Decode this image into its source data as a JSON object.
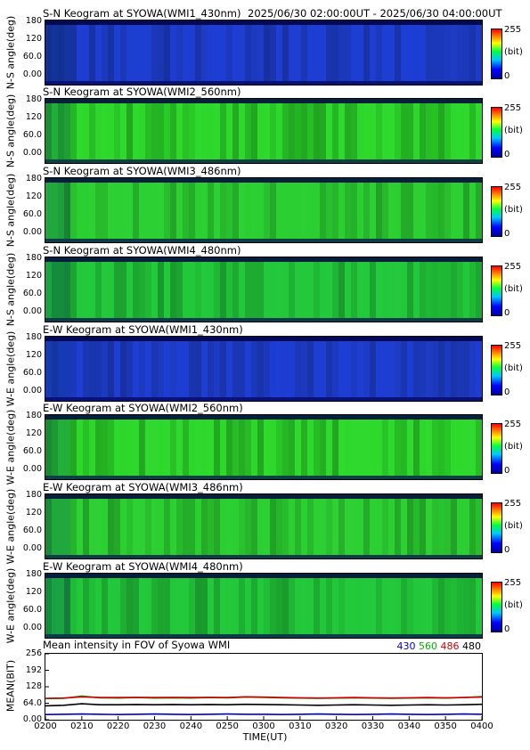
{
  "header": {
    "time_range": "2025/06/30 02:00:00UT - 2025/06/30 04:00:00UT"
  },
  "colorbar": {
    "max": "255",
    "unit": "(bit)",
    "min": "0",
    "colors": [
      "#0000a0",
      "#0000ff",
      "#00c8ff",
      "#00ff40",
      "#ffff00",
      "#ff8000",
      "#ff0000"
    ]
  },
  "keograms": [
    {
      "title": "S-N Keogram at SYOWA(WMI1_430nm)",
      "ylabel": "N-S angle(deg)",
      "yticks": [
        "180",
        "120",
        "60.0",
        "0.00"
      ],
      "base": "#1f3fd0",
      "band": "#1638e0"
    },
    {
      "title": "S-N Keogram at SYOWA(WMI2_560nm)",
      "ylabel": "N-S angle(deg)",
      "yticks": [
        "180",
        "120",
        "60.0",
        "0.00"
      ],
      "base": "#2cd62a",
      "band": "#3ee83a"
    },
    {
      "title": "S-N Keogram at SYOWA(WMI3_486nm)",
      "ylabel": "N-S angle(deg)",
      "yticks": [
        "180",
        "120",
        "60.0",
        "0.00"
      ],
      "base": "#2ccf32",
      "band": "#34d838"
    },
    {
      "title": "S-N Keogram at SYOWA(WMI4_480nm)",
      "ylabel": "N-S angle(deg)",
      "yticks": [
        "180",
        "120",
        "60.0",
        "0.00"
      ],
      "base": "#22c83a",
      "band": "#2ad040"
    },
    {
      "title": "E-W Keogram at SYOWA(WMI1_430nm)",
      "ylabel": "W-E angle(deg)",
      "yticks": [
        "180",
        "120",
        "60.0",
        "0.00"
      ],
      "base": "#1f3fd0",
      "band": "#1638e0"
    },
    {
      "title": "E-W Keogram at SYOWA(WMI2_560nm)",
      "ylabel": "W-E angle(deg)",
      "yticks": [
        "180",
        "120",
        "60.0",
        "0.00"
      ],
      "base": "#2cd62a",
      "band": "#3ee83a"
    },
    {
      "title": "E-W Keogram at SYOWA(WMI3_486nm)",
      "ylabel": "W-E angle(deg)",
      "yticks": [
        "180",
        "120",
        "60.0",
        "0.00"
      ],
      "base": "#2ccf32",
      "band": "#34d838"
    },
    {
      "title": "E-W Keogram at SYOWA(WMI4_480nm)",
      "ylabel": "W-E angle(deg)",
      "yticks": [
        "180",
        "120",
        "60.0",
        "0.00"
      ],
      "base": "#22c83a",
      "band": "#2ad040"
    }
  ],
  "mean_panel": {
    "title": "Mean intensity in FOV of Syowa WMI",
    "ylabel": "MEAN(BIT)",
    "xlabel": "TIME(UT)",
    "legend": [
      {
        "name": "430",
        "color": "#0000cc"
      },
      {
        "name": "560",
        "color": "#00b000"
      },
      {
        "name": "486",
        "color": "#cc0000"
      },
      {
        "name": "480",
        "color": "#000000"
      }
    ]
  },
  "chart_data": {
    "type": "line",
    "title": "Mean intensity in FOV of Syowa WMI",
    "xlabel": "TIME(UT)",
    "ylabel": "MEAN(BIT)",
    "xlim": [
      0,
      120
    ],
    "ylim": [
      0,
      256
    ],
    "x_tick_labels": [
      "0200",
      "0210",
      "0220",
      "0230",
      "0240",
      "0250",
      "0300",
      "0310",
      "0320",
      "0330",
      "0340",
      "0350",
      "0400"
    ],
    "y_tick_labels": [
      "256",
      "192",
      "128",
      "64.0",
      "0.00"
    ],
    "x": [
      0,
      5,
      10,
      15,
      20,
      25,
      30,
      35,
      40,
      45,
      50,
      55,
      60,
      65,
      70,
      75,
      80,
      85,
      90,
      95,
      100,
      105,
      110,
      115,
      120
    ],
    "series": [
      {
        "name": "430",
        "color": "#0000cc",
        "values": [
          20,
          21,
          22,
          21,
          20,
          21,
          22,
          21,
          20,
          21,
          22,
          21,
          21,
          20,
          21,
          22,
          21,
          20,
          21,
          22,
          21,
          20,
          21,
          22,
          21
        ]
      },
      {
        "name": "560",
        "color": "#00b000",
        "values": [
          82,
          83,
          92,
          85,
          84,
          86,
          84,
          85,
          84,
          86,
          85,
          88,
          87,
          85,
          84,
          83,
          84,
          85,
          84,
          83,
          84,
          85,
          84,
          86,
          90
        ]
      },
      {
        "name": "486",
        "color": "#cc0000",
        "values": [
          83,
          84,
          89,
          86,
          86,
          87,
          86,
          87,
          86,
          87,
          86,
          89,
          88,
          86,
          85,
          84,
          85,
          86,
          85,
          84,
          85,
          86,
          85,
          86,
          88
        ]
      },
      {
        "name": "480",
        "color": "#000000",
        "values": [
          54,
          56,
          62,
          58,
          58,
          59,
          58,
          59,
          58,
          59,
          58,
          60,
          59,
          58,
          57,
          56,
          57,
          58,
          57,
          56,
          57,
          58,
          57,
          58,
          60
        ]
      }
    ]
  }
}
